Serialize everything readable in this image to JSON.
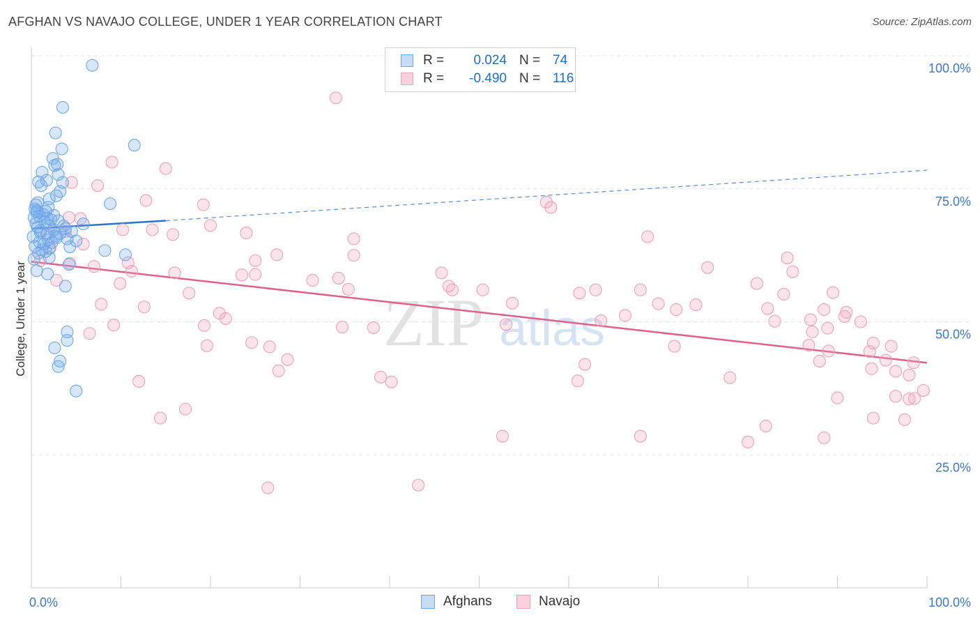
{
  "header": {
    "title": "AFGHAN VS NAVAJO COLLEGE, UNDER 1 YEAR CORRELATION CHART",
    "source": "Source: ZipAtlas.com"
  },
  "legend": {
    "rows": [
      {
        "r_label": "R =",
        "r_value": "0.024",
        "n_label": "N =",
        "n_value": "74",
        "color": "#6fa8e8"
      },
      {
        "r_label": "R =",
        "r_value": "-0.490",
        "n_label": "N =",
        "n_value": "116",
        "color": "#f0a0b8"
      }
    ]
  },
  "watermark": {
    "part1": "ZIP",
    "part2": "atlas"
  },
  "chart_data": {
    "type": "scatter",
    "title": "AFGHAN VS NAVAJO COLLEGE, UNDER 1 YEAR CORRELATION CHART",
    "xlabel": "",
    "ylabel": "College, Under 1 year",
    "xlim": [
      0,
      100
    ],
    "ylim": [
      0,
      100
    ],
    "x_tick_labels": [
      "0.0%",
      "100.0%"
    ],
    "y_tick_labels": [
      "25.0%",
      "50.0%",
      "75.0%",
      "100.0%"
    ],
    "y_ticks": [
      25,
      50,
      75,
      100
    ],
    "grid": true,
    "legend_position": "top-center",
    "series": [
      {
        "name": "Afghans",
        "color": "#6fa8e8",
        "line_color": "#2a72d0",
        "trend": {
          "x0": 0,
          "y0": 67.5,
          "x1": 15,
          "y1": 69.0,
          "dash_to_x": 100,
          "dash_to_y": 78.5
        },
        "points": [
          [
            6.8,
            98.2
          ],
          [
            3.5,
            90.3
          ],
          [
            2.7,
            85.5
          ],
          [
            11.5,
            83.2
          ],
          [
            3.4,
            82.5
          ],
          [
            2.4,
            80.7
          ],
          [
            2.9,
            79.6
          ],
          [
            2.6,
            79.4
          ],
          [
            1.2,
            78.1
          ],
          [
            3.0,
            77.7
          ],
          [
            1.7,
            76.6
          ],
          [
            0.8,
            76.3
          ],
          [
            3.5,
            76.2
          ],
          [
            1.1,
            75.6
          ],
          [
            3.2,
            74.5
          ],
          [
            2.8,
            73.7
          ],
          [
            2.0,
            73.1
          ],
          [
            0.7,
            72.4
          ],
          [
            0.5,
            72.0
          ],
          [
            8.8,
            72.2
          ],
          [
            0.4,
            71.2
          ],
          [
            1.6,
            70.8
          ],
          [
            0.6,
            70.6
          ],
          [
            1.3,
            70.2
          ],
          [
            2.5,
            70.0
          ],
          [
            0.9,
            69.8
          ],
          [
            0.3,
            69.6
          ],
          [
            1.8,
            69.4
          ],
          [
            2.2,
            69.2
          ],
          [
            3.0,
            69.0
          ],
          [
            1.5,
            68.8
          ],
          [
            0.5,
            68.5
          ],
          [
            5.8,
            68.4
          ],
          [
            2.0,
            68.0
          ],
          [
            0.7,
            67.8
          ],
          [
            3.8,
            67.5
          ],
          [
            2.5,
            67.3
          ],
          [
            4.5,
            67.0
          ],
          [
            1.0,
            66.8
          ],
          [
            3.2,
            66.6
          ],
          [
            1.7,
            66.4
          ],
          [
            0.2,
            66.0
          ],
          [
            2.8,
            65.8
          ],
          [
            4.0,
            65.6
          ],
          [
            1.9,
            65.4
          ],
          [
            5.0,
            65.2
          ],
          [
            0.9,
            65.0
          ],
          [
            1.4,
            64.6
          ],
          [
            0.4,
            64.2
          ],
          [
            4.3,
            64.1
          ],
          [
            2.0,
            63.8
          ],
          [
            1.2,
            63.5
          ],
          [
            8.2,
            63.4
          ],
          [
            1.6,
            63.2
          ],
          [
            0.8,
            62.9
          ],
          [
            10.5,
            62.6
          ],
          [
            2.0,
            62.1
          ],
          [
            0.3,
            61.8
          ],
          [
            4.2,
            60.8
          ],
          [
            0.6,
            59.6
          ],
          [
            3.8,
            56.7
          ],
          [
            1.8,
            59.0
          ],
          [
            4.0,
            48.1
          ],
          [
            4.0,
            46.5
          ],
          [
            2.6,
            45.1
          ],
          [
            3.2,
            42.6
          ],
          [
            3.0,
            41.6
          ],
          [
            5.0,
            37.0
          ],
          [
            1.0,
            67.2
          ],
          [
            2.3,
            64.9
          ],
          [
            0.6,
            70.9
          ],
          [
            3.6,
            68.0
          ],
          [
            1.9,
            71.5
          ],
          [
            2.7,
            66.1
          ]
        ]
      },
      {
        "name": "Navajo",
        "color": "#f0a0b8",
        "line_color": "#e0608a",
        "trend": {
          "x0": 0,
          "y0": 61.3,
          "x1": 100,
          "y1": 42.3
        },
        "points": [
          [
            34.0,
            92.1
          ],
          [
            9.0,
            80.0
          ],
          [
            15.0,
            78.8
          ],
          [
            4.5,
            76.2
          ],
          [
            7.4,
            75.6
          ],
          [
            12.8,
            72.8
          ],
          [
            57.5,
            72.5
          ],
          [
            19.2,
            72.0
          ],
          [
            58.0,
            71.5
          ],
          [
            4.2,
            69.6
          ],
          [
            5.5,
            69.4
          ],
          [
            20.0,
            68.1
          ],
          [
            10.2,
            67.3
          ],
          [
            13.5,
            67.3
          ],
          [
            3.8,
            67.0
          ],
          [
            1.8,
            66.7
          ],
          [
            15.8,
            66.4
          ],
          [
            24.0,
            66.7
          ],
          [
            68.8,
            66.0
          ],
          [
            36.0,
            65.6
          ],
          [
            5.8,
            64.6
          ],
          [
            2.1,
            63.9
          ],
          [
            27.4,
            62.6
          ],
          [
            36.0,
            62.5
          ],
          [
            84.4,
            62.0
          ],
          [
            10.8,
            61.1
          ],
          [
            25.0,
            61.5
          ],
          [
            1.0,
            61.5
          ],
          [
            4.3,
            61.0
          ],
          [
            7.0,
            60.4
          ],
          [
            75.5,
            60.2
          ],
          [
            11.2,
            59.5
          ],
          [
            16.0,
            59.2
          ],
          [
            45.8,
            59.2
          ],
          [
            85.0,
            59.4
          ],
          [
            23.5,
            58.8
          ],
          [
            25.0,
            58.9
          ],
          [
            31.4,
            57.8
          ],
          [
            34.3,
            58.2
          ],
          [
            2.8,
            57.8
          ],
          [
            9.9,
            57.2
          ],
          [
            81.0,
            57.2
          ],
          [
            46.6,
            56.7
          ],
          [
            35.4,
            56.1
          ],
          [
            47.0,
            56.0
          ],
          [
            50.4,
            56.0
          ],
          [
            63.0,
            56.0
          ],
          [
            68.0,
            56.0
          ],
          [
            17.6,
            55.4
          ],
          [
            61.2,
            55.4
          ],
          [
            84.0,
            55.2
          ],
          [
            89.5,
            55.5
          ],
          [
            53.7,
            53.5
          ],
          [
            74.2,
            53.2
          ],
          [
            70.0,
            53.4
          ],
          [
            7.8,
            53.3
          ],
          [
            12.6,
            52.8
          ],
          [
            82.2,
            52.5
          ],
          [
            72.0,
            52.3
          ],
          [
            88.5,
            52.3
          ],
          [
            21.0,
            51.6
          ],
          [
            91.0,
            51.8
          ],
          [
            90.8,
            51.0
          ],
          [
            66.3,
            51.2
          ],
          [
            63.6,
            50.2
          ],
          [
            21.7,
            50.6
          ],
          [
            83.0,
            50.1
          ],
          [
            92.6,
            50.0
          ],
          [
            87.0,
            50.4
          ],
          [
            9.2,
            49.4
          ],
          [
            19.3,
            49.3
          ],
          [
            34.7,
            49.0
          ],
          [
            38.2,
            48.9
          ],
          [
            53.0,
            49.5
          ],
          [
            88.9,
            48.8
          ],
          [
            87.2,
            48.1
          ],
          [
            6.5,
            47.8
          ],
          [
            94.0,
            46.0
          ],
          [
            93.6,
            44.4
          ],
          [
            89.0,
            44.5
          ],
          [
            24.6,
            46.1
          ],
          [
            26.6,
            45.3
          ],
          [
            71.8,
            45.4
          ],
          [
            86.8,
            45.6
          ],
          [
            96.0,
            45.4
          ],
          [
            19.6,
            45.5
          ],
          [
            88.0,
            42.6
          ],
          [
            95.4,
            42.8
          ],
          [
            98.5,
            42.3
          ],
          [
            28.6,
            42.9
          ],
          [
            61.8,
            42.0
          ],
          [
            27.6,
            40.8
          ],
          [
            93.8,
            41.2
          ],
          [
            96.5,
            40.7
          ],
          [
            98.0,
            40.0
          ],
          [
            39.0,
            39.6
          ],
          [
            40.2,
            38.7
          ],
          [
            12.0,
            38.8
          ],
          [
            61.0,
            38.9
          ],
          [
            78.0,
            39.5
          ],
          [
            90.0,
            35.7
          ],
          [
            96.5,
            36.0
          ],
          [
            98.0,
            35.5
          ],
          [
            99.6,
            37.1
          ],
          [
            98.6,
            35.6
          ],
          [
            17.2,
            33.6
          ],
          [
            14.4,
            31.9
          ],
          [
            94.0,
            31.9
          ],
          [
            97.5,
            31.6
          ],
          [
            82.0,
            30.4
          ],
          [
            52.6,
            28.5
          ],
          [
            68.0,
            28.5
          ],
          [
            88.5,
            28.2
          ],
          [
            80.0,
            27.4
          ],
          [
            26.4,
            18.8
          ],
          [
            43.2,
            19.3
          ]
        ]
      }
    ]
  },
  "bottom_legend": {
    "items": [
      {
        "label": "Afghans",
        "color": "#6fa8e8"
      },
      {
        "label": "Navajo",
        "color": "#f0a0b8"
      }
    ]
  }
}
